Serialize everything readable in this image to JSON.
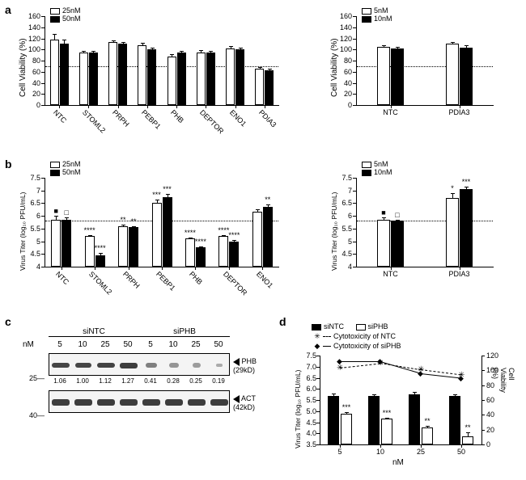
{
  "labels": {
    "a": "a",
    "b": "b",
    "c": "c",
    "d": "d"
  },
  "panel_a_left": {
    "y_title": "Cell Viability (%)",
    "ylim": [
      0,
      160
    ],
    "ytick_step": 20,
    "dashed_at": 70,
    "series_labels": {
      "s1": "25nM",
      "s2": "50nM"
    },
    "series_colors": {
      "s1": "#ffffff",
      "s2": "#000000"
    },
    "border_color": "#000000",
    "categories": [
      "NTC",
      "STOML2",
      "PRPH",
      "PEBP1",
      "PHB",
      "DEPTOR",
      "ENO1",
      "PDIA3"
    ],
    "s1": [
      118,
      95,
      113,
      108,
      88,
      95,
      102,
      65
    ],
    "s1_err": [
      10,
      3,
      3,
      4,
      3,
      4,
      4,
      3
    ],
    "s2": [
      110,
      95,
      110,
      100,
      94,
      94,
      100,
      62
    ],
    "s2_err": [
      8,
      2,
      3,
      3,
      3,
      3,
      4,
      3
    ]
  },
  "panel_a_right": {
    "y_title": "Cell Viability (%)",
    "ylim": [
      0,
      160
    ],
    "ytick_step": 20,
    "dashed_at": 70,
    "series_labels": {
      "s1": "5nM",
      "s2": "10nM"
    },
    "series_colors": {
      "s1": "#ffffff",
      "s2": "#000000"
    },
    "border_color": "#000000",
    "categories": [
      "NTC",
      "PDIA3"
    ],
    "s1": [
      105,
      110
    ],
    "s1_err": [
      2,
      4
    ],
    "s2": [
      102,
      104
    ],
    "s2_err": [
      3,
      3
    ]
  },
  "panel_b_left": {
    "y_title": "Virus Titer (log₁₀ PFU/mL)",
    "ylim": [
      4,
      7.5
    ],
    "ytick_step": 0.5,
    "dashed_at": 5.8,
    "series_labels": {
      "s1": "25nM",
      "s2": "50nM"
    },
    "series_colors": {
      "s1": "#ffffff",
      "s2": "#000000"
    },
    "border_color": "#000000",
    "categories": [
      "NTC",
      "STOML2",
      "PRPH",
      "PEBP1",
      "PHB",
      "DEPTOR",
      "ENO1"
    ],
    "s1": [
      5.85,
      5.2,
      5.6,
      6.5,
      5.1,
      5.2,
      6.15
    ],
    "s1_err": [
      0.15,
      0.05,
      0.05,
      0.15,
      0.05,
      0.05,
      0.1
    ],
    "s1_sig": [
      "■",
      "****",
      "**",
      "***",
      "****",
      "****",
      ""
    ],
    "s2": [
      5.85,
      4.45,
      5.55,
      6.75,
      4.75,
      5.0,
      6.35
    ],
    "s2_err": [
      0.1,
      0.1,
      0.05,
      0.1,
      0.05,
      0.05,
      0.1
    ],
    "s2_sig": [
      "□",
      "****",
      "**",
      "***",
      "****",
      "****",
      "**"
    ]
  },
  "panel_b_right": {
    "y_title": "Virus Titer (log₁₀ PFU/mL)",
    "ylim": [
      4,
      7.5
    ],
    "ytick_step": 0.5,
    "dashed_at": 5.8,
    "series_labels": {
      "s1": "5nM",
      "s2": "10nM"
    },
    "series_colors": {
      "s1": "#ffffff",
      "s2": "#000000"
    },
    "border_color": "#000000",
    "categories": [
      "NTC",
      "PDIA3"
    ],
    "s1": [
      5.85,
      6.7
    ],
    "s1_err": [
      0.1,
      0.2
    ],
    "s1_sig": [
      "■",
      "*"
    ],
    "s2": [
      5.8,
      7.05
    ],
    "s2_err": [
      0.05,
      0.1
    ],
    "s2_sig": [
      "□",
      "***"
    ]
  },
  "panel_c": {
    "group_labels": [
      "siNTC",
      "siPHB"
    ],
    "nM_label": "nM",
    "lane_labels": [
      "5",
      "10",
      "25",
      "50",
      "5",
      "10",
      "25",
      "50"
    ],
    "phb_label": "PHB\n(29kD)",
    "act_label": "ACT\n(42kD)",
    "phb_mw": "25—",
    "act_mw": "40—",
    "densitometry": [
      "1.06",
      "1.00",
      "1.12",
      "1.27",
      "0.41",
      "0.28",
      "0.25",
      "0.19"
    ],
    "band_color": "#3d3d3d",
    "blot_bg": "#f4f4f4",
    "phb_intensities": [
      0.95,
      0.94,
      0.96,
      1.0,
      0.55,
      0.4,
      0.35,
      0.25
    ],
    "act_intensities": [
      1,
      1,
      1,
      1,
      1,
      1,
      1,
      1
    ]
  },
  "panel_d": {
    "y_title": "Virus Titer (log₁₀ PFU/mL)",
    "y2_title": "Cell Viability (%)",
    "x_title": "nM",
    "ylim": [
      3.5,
      7.5
    ],
    "ytick_step": 0.5,
    "y2lim": [
      0,
      120
    ],
    "y2tick_step": 20,
    "categories": [
      "5",
      "10",
      "25",
      "50"
    ],
    "series_labels": {
      "siNTC": "siNTC",
      "siPHB": "siPHB",
      "cytoNTC": "Cytotoxicity of NTC",
      "cytoPHB": "Cytotoxicity of siPHB"
    },
    "series_colors": {
      "siNTC": "#000000",
      "siPHB": "#ffffff"
    },
    "border_color": "#000000",
    "siNTC": [
      5.7,
      5.7,
      5.75,
      5.7
    ],
    "siNTC_err": [
      0.1,
      0.05,
      0.1,
      0.05
    ],
    "siPHB": [
      4.9,
      4.65,
      4.25,
      3.85
    ],
    "siPHB_err": [
      0.05,
      0.05,
      0.1,
      0.2
    ],
    "siPHB_sig": [
      "***",
      "***",
      "**",
      "**"
    ],
    "cytoNTC": [
      104,
      110,
      101,
      94
    ],
    "cytoPHB": [
      112,
      112,
      96,
      90
    ],
    "line_styles": {
      "cytoNTC": "dashed",
      "cytoPHB": "solid"
    },
    "marker_styles": {
      "cytoNTC": "x",
      "cytoPHB": "diamond"
    }
  }
}
